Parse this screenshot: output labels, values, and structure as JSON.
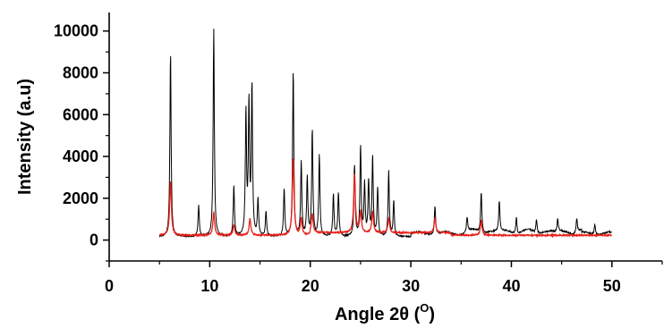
{
  "chart_data": {
    "type": "line",
    "title": "",
    "xlabel_main": "Angle 2θ (",
    "xlabel_sup": "O",
    "xlabel_tail": ")",
    "ylabel": "Intensity (a.u)",
    "xlim": [
      0,
      55
    ],
    "ylim": [
      -1000,
      10800
    ],
    "x_ticks": [
      0,
      10,
      20,
      30,
      40,
      50
    ],
    "x_tick_labels": [
      "0",
      "10",
      "20",
      "30",
      "40",
      "50"
    ],
    "y_ticks": [
      0,
      2000,
      4000,
      6000,
      8000,
      10000
    ],
    "y_tick_labels": [
      "0",
      "2000",
      "4000",
      "6000",
      "8000",
      "10000"
    ],
    "grid": false,
    "series": [
      {
        "color": "#000000",
        "peaks": [
          [
            6.1,
            8800
          ],
          [
            8.9,
            1500
          ],
          [
            10.4,
            9900
          ],
          [
            12.4,
            2400
          ],
          [
            13.6,
            5900
          ],
          [
            13.9,
            6300
          ],
          [
            14.2,
            7100
          ],
          [
            14.8,
            1800
          ],
          [
            15.6,
            1200
          ],
          [
            17.4,
            2300
          ],
          [
            18.3,
            7900
          ],
          [
            19.1,
            3500
          ],
          [
            19.7,
            2800
          ],
          [
            20.2,
            5100
          ],
          [
            20.9,
            3900
          ],
          [
            22.3,
            2000
          ],
          [
            22.8,
            2100
          ],
          [
            24.4,
            3400
          ],
          [
            25.0,
            4300
          ],
          [
            25.4,
            2500
          ],
          [
            25.8,
            2600
          ],
          [
            26.2,
            3800
          ],
          [
            26.7,
            2300
          ],
          [
            27.8,
            3100
          ],
          [
            28.3,
            1700
          ],
          [
            32.4,
            1400
          ],
          [
            35.6,
            700
          ],
          [
            37.0,
            2000
          ],
          [
            38.8,
            1500
          ],
          [
            40.5,
            800
          ],
          [
            42.5,
            700
          ],
          [
            44.6,
            600
          ],
          [
            46.5,
            650
          ],
          [
            48.3,
            500
          ]
        ]
      },
      {
        "color": "#e8201a",
        "peaks": [
          [
            6.1,
            2600
          ],
          [
            10.4,
            1100
          ],
          [
            12.4,
            500
          ],
          [
            14.0,
            800
          ],
          [
            18.3,
            3700
          ],
          [
            19.1,
            800
          ],
          [
            20.2,
            900
          ],
          [
            24.4,
            2800
          ],
          [
            25.0,
            1000
          ],
          [
            26.2,
            1000
          ],
          [
            27.8,
            700
          ],
          [
            32.4,
            700
          ],
          [
            37.0,
            700
          ]
        ]
      }
    ]
  }
}
